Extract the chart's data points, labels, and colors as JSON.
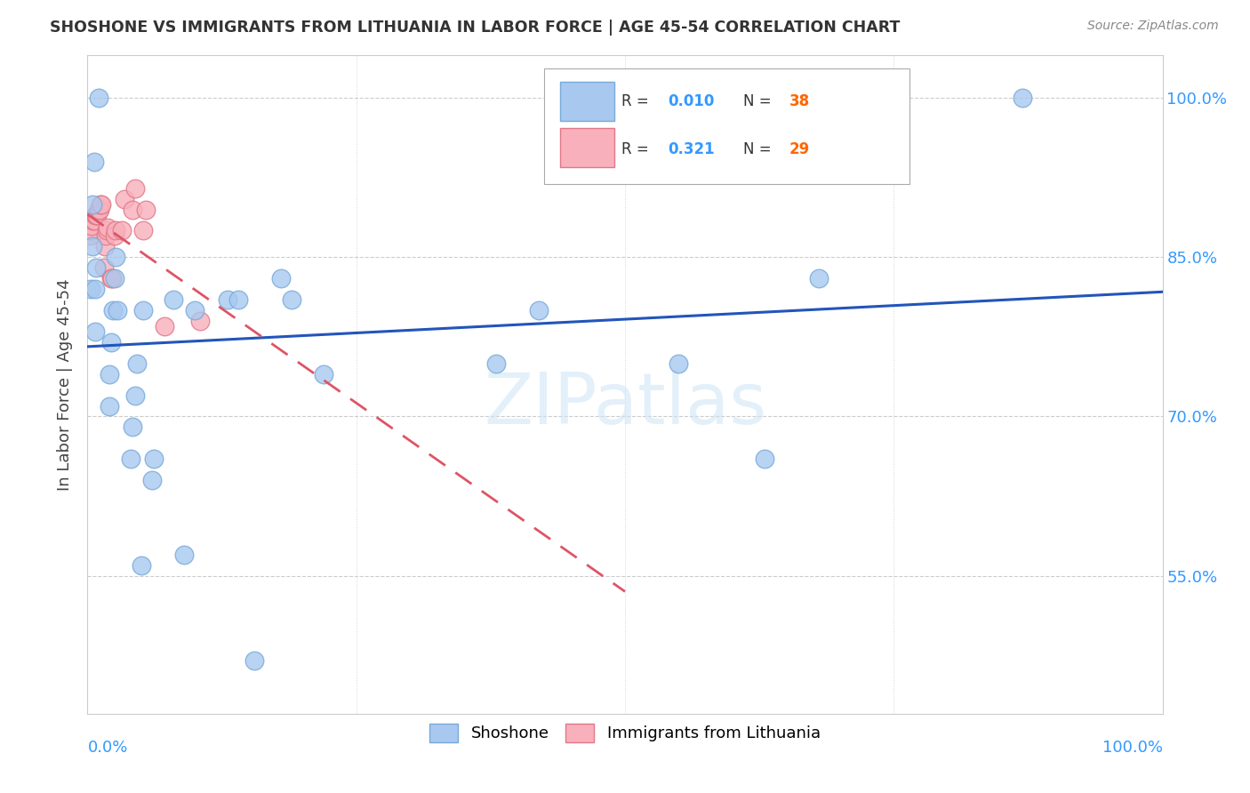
{
  "title": "SHOSHONE VS IMMIGRANTS FROM LITHUANIA IN LABOR FORCE | AGE 45-54 CORRELATION CHART",
  "source": "Source: ZipAtlas.com",
  "ylabel": "In Labor Force | Age 45-54",
  "x_range": [
    0.0,
    1.0
  ],
  "y_range": [
    0.42,
    1.04
  ],
  "shoshone_color": "#a8c8f0",
  "shoshone_edge": "#78aad8",
  "lithuania_color": "#f8b0bc",
  "lithuania_edge": "#e07888",
  "trend_shoshone_color": "#2255bb",
  "trend_lithuania_color": "#dd5566",
  "r1_val": "0.010",
  "n1_val": "38",
  "r2_val": "0.321",
  "n2_val": "29",
  "r_color": "#000000",
  "rv_color": "#3399ff",
  "n_color": "#000000",
  "nv_color": "#ff6600",
  "grid_color": "#cccccc",
  "background_color": "#ffffff",
  "watermark": "ZIPatlas",
  "shoshone_x": [
    0.003,
    0.005,
    0.005,
    0.006,
    0.007,
    0.007,
    0.008,
    0.01,
    0.02,
    0.02,
    0.022,
    0.024,
    0.025,
    0.026,
    0.028,
    0.04,
    0.042,
    0.044,
    0.046,
    0.05,
    0.052,
    0.06,
    0.062,
    0.08,
    0.09,
    0.1,
    0.13,
    0.14,
    0.155,
    0.18,
    0.19,
    0.22,
    0.38,
    0.42,
    0.55,
    0.63,
    0.68,
    0.87
  ],
  "shoshone_y": [
    0.82,
    0.86,
    0.9,
    0.94,
    0.78,
    0.82,
    0.84,
    1.0,
    0.71,
    0.74,
    0.77,
    0.8,
    0.83,
    0.85,
    0.8,
    0.66,
    0.69,
    0.72,
    0.75,
    0.56,
    0.8,
    0.64,
    0.66,
    0.81,
    0.57,
    0.8,
    0.81,
    0.81,
    0.47,
    0.83,
    0.81,
    0.74,
    0.75,
    0.8,
    0.75,
    0.66,
    0.83,
    1.0
  ],
  "lithuania_x": [
    0.002,
    0.003,
    0.004,
    0.005,
    0.006,
    0.007,
    0.008,
    0.009,
    0.01,
    0.011,
    0.012,
    0.013,
    0.015,
    0.016,
    0.017,
    0.018,
    0.019,
    0.022,
    0.023,
    0.025,
    0.026,
    0.032,
    0.034,
    0.042,
    0.044,
    0.052,
    0.054,
    0.072,
    0.105
  ],
  "lithuania_y": [
    0.87,
    0.875,
    0.88,
    0.885,
    0.885,
    0.89,
    0.89,
    0.89,
    0.895,
    0.895,
    0.9,
    0.9,
    0.84,
    0.86,
    0.87,
    0.875,
    0.878,
    0.83,
    0.83,
    0.87,
    0.875,
    0.875,
    0.905,
    0.895,
    0.915,
    0.875,
    0.895,
    0.785,
    0.79
  ]
}
